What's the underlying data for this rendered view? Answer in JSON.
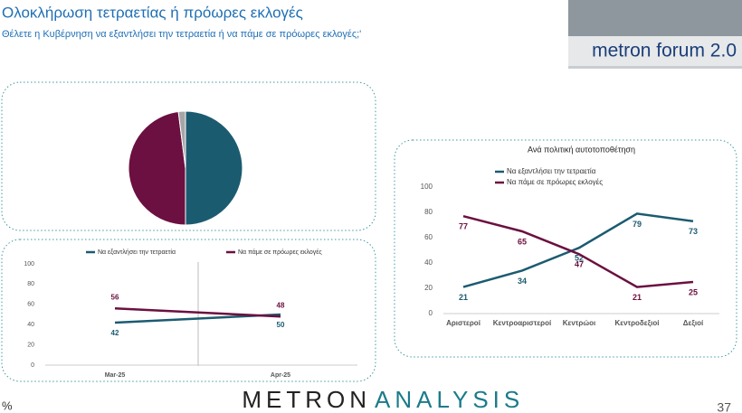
{
  "header": {
    "title": "Ολοκλήρωση τετραετίας ή πρόωρες εκλογές",
    "subtitle": "Θέλετε η Κυβέρνηση να εξαντλήσει την τετραετία ή να πάμε σε πρόωρες εκλογές;'",
    "logo": "metron forum 2.0"
  },
  "chart_data": [
    {
      "type": "pie",
      "values": [
        50,
        48,
        2
      ],
      "colors": [
        "#1b5b70",
        "#6b1040",
        "#a6a6a6"
      ]
    },
    {
      "type": "line",
      "categories": [
        "Mar-25",
        "Apr-25"
      ],
      "ylim": [
        0,
        100
      ],
      "yticks": [
        0,
        20,
        40,
        60,
        80,
        100
      ],
      "grid": false,
      "series": [
        {
          "name": "Να εξαντλήσει την τετραετία",
          "color": "#1b5b70",
          "values": [
            42,
            50
          ]
        },
        {
          "name": "Να πάμε σε πρόωρες εκλογές",
          "color": "#6b1040",
          "values": [
            56,
            48
          ]
        }
      ]
    },
    {
      "type": "line",
      "title": "Ανά πολιτική αυτοτοποθέτηση",
      "categories": [
        "Αριστεροί",
        "Κεντροαριστεροί",
        "Κεντρώοι",
        "Κεντροδεξιοί",
        "Δεξιοί"
      ],
      "ylim": [
        0,
        100
      ],
      "yticks": [
        0,
        20,
        40,
        60,
        80,
        100
      ],
      "grid": false,
      "series": [
        {
          "name": "Να εξαντλήσει την τετραετία",
          "color": "#1b5b70",
          "values": [
            21,
            34,
            52,
            79,
            73
          ]
        },
        {
          "name": "Να πάμε σε πρόωρες εκλογές",
          "color": "#6b1040",
          "values": [
            77,
            65,
            47,
            21,
            25
          ]
        }
      ]
    }
  ],
  "footer": {
    "brand_a": "METRON",
    "brand_b": "ANALYSIS",
    "unit": "%",
    "page": "37"
  }
}
